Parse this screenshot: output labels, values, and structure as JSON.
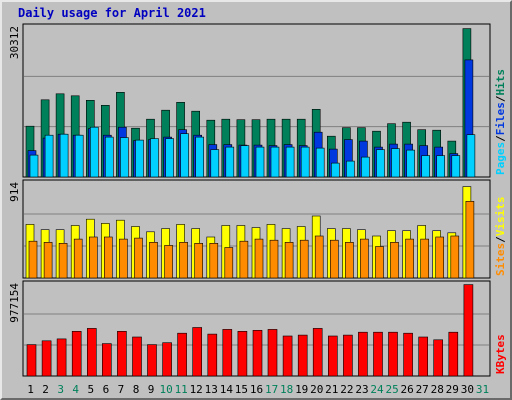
{
  "window": {
    "title": "Daily usage for April 2021"
  },
  "colors": {
    "background": "#c0c0c0",
    "hits": "#00805a",
    "files": "#0038e0",
    "pages": "#00d0ff",
    "visits": "#ffff00",
    "sites": "#ff8c00",
    "kbytes": "#ff0000",
    "title": "#0000c0",
    "weekend": "#00805a",
    "weekday": "#000000"
  },
  "chart_data": {
    "type": "bar",
    "title": "Daily usage for April 2021",
    "categories": [
      "1",
      "2",
      "3",
      "4",
      "5",
      "6",
      "7",
      "8",
      "9",
      "10",
      "11",
      "12",
      "13",
      "14",
      "15",
      "16",
      "17",
      "18",
      "19",
      "20",
      "21",
      "22",
      "23",
      "24",
      "25",
      "26",
      "27",
      "28",
      "29",
      "30",
      "31"
    ],
    "weekend_days": [
      "3",
      "4",
      "10",
      "11",
      "17",
      "18",
      "24",
      "25",
      "31"
    ],
    "panels": [
      {
        "name": "hits-files-pages",
        "ylabel_max": "30312",
        "ylim": [
          0,
          30312
        ],
        "legend": [
          {
            "label": "Pages",
            "color": "#00d0ff"
          },
          {
            "label": "Files",
            "color": "#0038e0"
          },
          {
            "label": "Hits",
            "color": "#00805a"
          }
        ],
        "series": [
          {
            "name": "Hits",
            "color": "#00805a",
            "values": [
              10200,
              15500,
              16700,
              16300,
              15400,
              14400,
              17000,
              9800,
              11600,
              13400,
              15000,
              13200,
              11400,
              11600,
              11500,
              11500,
              11600,
              11600,
              11600,
              13600,
              8200,
              9900,
              9900,
              9200,
              10700,
              11000,
              9500,
              9400,
              7200,
              29800,
              null
            ]
          },
          {
            "name": "Files",
            "color": "#0038e0",
            "values": [
              5300,
              7800,
              8600,
              8400,
              9700,
              8400,
              10000,
              7300,
              7500,
              8000,
              9500,
              8400,
              6500,
              6500,
              6400,
              6400,
              6300,
              6500,
              6300,
              9000,
              5600,
              7500,
              7200,
              6000,
              6600,
              6600,
              6300,
              6000,
              4700,
              23500,
              null
            ]
          },
          {
            "name": "Pages",
            "color": "#00d0ff",
            "values": [
              4400,
              8400,
              8600,
              8400,
              10000,
              8000,
              7900,
              7400,
              7700,
              7700,
              8700,
              8000,
              5500,
              6000,
              6300,
              6000,
              6000,
              6000,
              6000,
              5800,
              2800,
              3200,
              4000,
              5500,
              5700,
              5400,
              4300,
              4300,
              4300,
              8500,
              null
            ]
          }
        ]
      },
      {
        "name": "visits-sites",
        "ylabel_max": "914",
        "ylim": [
          0,
          914
        ],
        "legend": [
          {
            "label": "Sites",
            "color": "#ff8c00"
          },
          {
            "label": "Visits",
            "color": "#ffff00"
          }
        ],
        "series": [
          {
            "name": "Visits",
            "color": "#ffff00",
            "values": [
              510,
              460,
              460,
              500,
              560,
              520,
              550,
              490,
              440,
              470,
              510,
              470,
              390,
              500,
              500,
              480,
              510,
              470,
              490,
              590,
              470,
              470,
              460,
              400,
              450,
              450,
              500,
              450,
              430,
              870,
              null
            ]
          },
          {
            "name": "Sites",
            "color": "#ff8c00",
            "values": [
              350,
              340,
              330,
              370,
              390,
              390,
              370,
              380,
              340,
              310,
              340,
              330,
              330,
              290,
              350,
              370,
              360,
              340,
              360,
              400,
              360,
              340,
              370,
              300,
              340,
              370,
              370,
              390,
              400,
              730,
              null
            ]
          }
        ]
      },
      {
        "name": "kbytes",
        "ylabel_max": "977154",
        "ylim": [
          0,
          977154
        ],
        "legend": [
          {
            "label": "KBytes",
            "color": "#ff0000"
          }
        ],
        "series": [
          {
            "name": "KBytes",
            "color": "#ff0000",
            "values": [
              330000,
              370000,
              390000,
              470000,
              500000,
              340000,
              470000,
              410000,
              330000,
              350000,
              450000,
              510000,
              440000,
              490000,
              470000,
              480000,
              490000,
              420000,
              430000,
              500000,
              420000,
              430000,
              460000,
              460000,
              460000,
              450000,
              410000,
              380000,
              460000,
              960000,
              null
            ]
          }
        ]
      }
    ]
  }
}
